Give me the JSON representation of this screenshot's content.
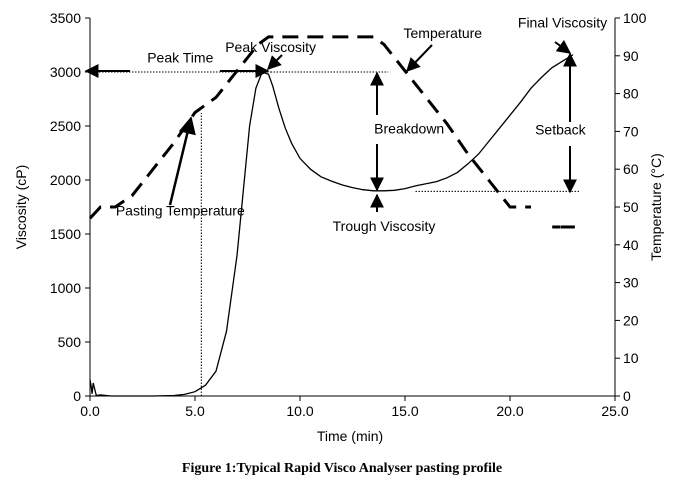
{
  "chart_data": {
    "type": "line",
    "caption": "Figure 1:Typical Rapid Visco Analyser pasting profile",
    "xlabel": "Time (min)",
    "ylabel": "Viscosity (cP)",
    "y2label": "Temperature (°C)",
    "xlim": [
      0,
      25
    ],
    "ylim": [
      0,
      3500
    ],
    "y2lim": [
      0,
      100
    ],
    "x_ticks": [
      "0.0",
      "5.0",
      "10.0",
      "15.0",
      "20.0",
      "25.0"
    ],
    "y_ticks": [
      "0",
      "500",
      "1000",
      "1500",
      "2000",
      "2500",
      "3000",
      "3500"
    ],
    "y2_ticks": [
      "0",
      "10",
      "20",
      "30",
      "40",
      "50",
      "60",
      "70",
      "80",
      "90",
      "100"
    ],
    "grid": false,
    "series": [
      {
        "axis": "left",
        "style": "solid",
        "x": [
          0,
          0.05,
          0.1,
          0.15,
          0.3,
          0.5,
          1,
          2,
          3,
          4,
          4.5,
          5,
          5.5,
          6,
          6.5,
          7,
          7.3,
          7.6,
          7.9,
          8.2,
          8.5,
          8.7,
          9,
          9.3,
          9.6,
          10,
          10.5,
          11,
          11.5,
          12,
          12.5,
          13,
          13.5,
          14,
          14.5,
          15,
          15.5,
          16,
          16.5,
          17,
          17.5,
          18,
          18.5,
          19,
          19.5,
          20,
          20.5,
          21,
          21.5,
          22,
          22.5,
          23
        ],
        "y": [
          150,
          100,
          20,
          120,
          5,
          10,
          0,
          0,
          0,
          5,
          15,
          40,
          100,
          230,
          600,
          1300,
          1900,
          2500,
          2850,
          3000,
          2980,
          2870,
          2660,
          2480,
          2340,
          2200,
          2100,
          2030,
          1990,
          1955,
          1930,
          1910,
          1900,
          1900,
          1905,
          1920,
          1945,
          1965,
          1985,
          2020,
          2070,
          2150,
          2240,
          2360,
          2480,
          2600,
          2720,
          2850,
          2950,
          3040,
          3100,
          3160
        ]
      },
      {
        "axis": "right",
        "style": "dashed",
        "x": [
          0,
          0.5,
          1.2,
          2,
          3,
          4,
          5,
          6,
          7,
          8,
          8.5,
          9,
          10,
          11,
          12,
          13,
          13.5,
          14,
          15,
          16,
          17,
          18,
          19,
          20,
          21
        ],
        "y": [
          47,
          50,
          50,
          53,
          60,
          67,
          75,
          79,
          86,
          93,
          95,
          95,
          95,
          95,
          95,
          95,
          95,
          93,
          86,
          79,
          72,
          64,
          57,
          50,
          50
        ]
      }
    ],
    "markers": [
      {
        "x": [
          22.2,
          22.6,
          22.9
        ],
        "y": [
          1565,
          1565,
          1565
        ],
        "axis": "left"
      }
    ],
    "reference_lines": [
      {
        "x1": 0,
        "y1": 3000,
        "x2": 8.6,
        "y2": 3000
      },
      {
        "x1": 8.6,
        "y1": 3000,
        "x2": 14.2,
        "y2": 3000
      },
      {
        "x1": 5.3,
        "y1": 0,
        "x2": 5.3,
        "y2": 2620
      },
      {
        "x1": 15.5,
        "y1": 1895,
        "x2": 23.3,
        "y2": 1895
      }
    ],
    "annotations": [
      {
        "label": "Peak Time",
        "x": 4.3,
        "y": 3090
      },
      {
        "label": "Peak Viscosity",
        "x": 8.6,
        "y": 3185
      },
      {
        "label": "Temperature",
        "x": 16.8,
        "y": 3315
      },
      {
        "label": "Final Viscosity",
        "x": 22.5,
        "y": 3410
      },
      {
        "label": "Breakdown",
        "x": 15.2,
        "y": 2430
      },
      {
        "label": "Setback",
        "x": 22.4,
        "y": 2420
      },
      {
        "label": "Pasting Temperature",
        "x": 4.3,
        "y": 1670
      },
      {
        "label": "Trough Viscosity",
        "x": 14.0,
        "y": 1530
      }
    ]
  }
}
